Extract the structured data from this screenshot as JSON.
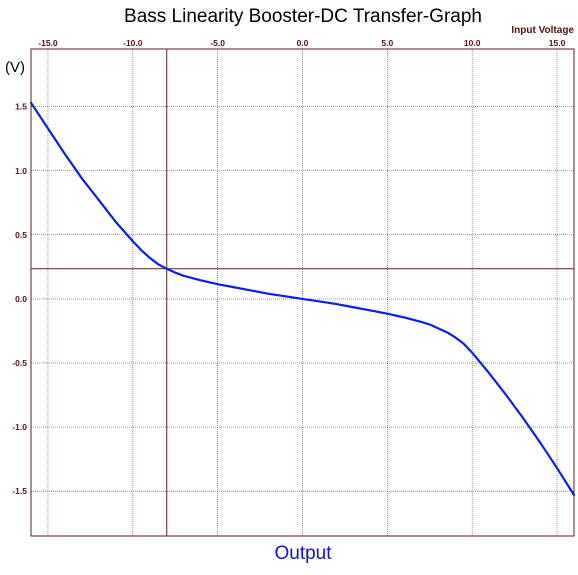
{
  "chart_data": {
    "type": "line",
    "title": "Bass Linearity Booster-DC Transfer-Graph",
    "xlabel": "Input Voltage",
    "ylabel": "(V)",
    "bottom_label": "Output",
    "x_ticks": [
      "-15.0",
      "-10.0",
      "-5.0",
      "0.0",
      "5.0",
      "10.0",
      "15.0"
    ],
    "y_ticks": [
      "1.5",
      "1.0",
      "0.5",
      "0.0",
      "-0.5",
      "-1.0",
      "-1.5"
    ],
    "xlim": [
      -16,
      16
    ],
    "ylim": [
      -1.85,
      1.95
    ],
    "grid": true,
    "cursor": {
      "x": -8.0,
      "y": 0.235
    },
    "series": [
      {
        "color": "#0a1ef0",
        "x": [
          -16.0,
          -15.0,
          -14.0,
          -13.0,
          -12.0,
          -11.0,
          -10.0,
          -9.5,
          -9.0,
          -8.5,
          -8.0,
          -7.5,
          -7.0,
          -6.0,
          -5.0,
          -4.0,
          -3.0,
          -2.0,
          -1.0,
          0.0,
          1.0,
          2.0,
          3.0,
          4.0,
          5.0,
          6.0,
          7.0,
          7.5,
          8.0,
          8.5,
          9.0,
          9.5,
          10.0,
          11.0,
          12.0,
          13.0,
          14.0,
          15.0,
          16.0
        ],
        "y": [
          1.53,
          1.33,
          1.13,
          0.94,
          0.77,
          0.6,
          0.45,
          0.38,
          0.32,
          0.27,
          0.235,
          0.205,
          0.18,
          0.145,
          0.115,
          0.09,
          0.065,
          0.04,
          0.02,
          0.0,
          -0.02,
          -0.04,
          -0.065,
          -0.09,
          -0.115,
          -0.145,
          -0.18,
          -0.2,
          -0.23,
          -0.26,
          -0.3,
          -0.35,
          -0.42,
          -0.58,
          -0.75,
          -0.93,
          -1.12,
          -1.32,
          -1.53
        ]
      }
    ],
    "colors": {
      "grid": "#8b3a3a",
      "frame": "#5a2222",
      "tick_text": "#5a1010",
      "title_text": "#000000",
      "bottom_label": "#1010e0",
      "line": "#0a1ef0"
    }
  }
}
